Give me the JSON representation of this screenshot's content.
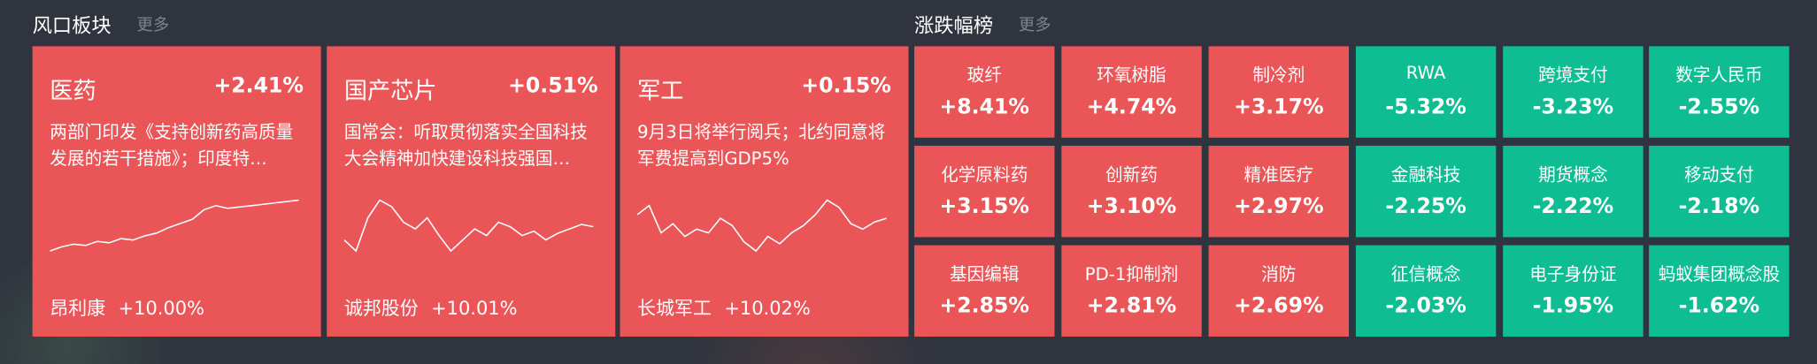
{
  "boards": {
    "title": "风口板块",
    "more": "更多",
    "cards": [
      {
        "name": "医药",
        "change": "+2.41%",
        "news": "两部门印发《支持创新药高质量发展的若干措施》；印度特…",
        "sparkline": [
          5,
          8,
          10,
          9,
          12,
          11,
          14,
          13,
          16,
          18,
          22,
          25,
          28,
          35,
          38,
          36,
          37,
          38,
          39,
          40,
          41,
          42
        ],
        "stock": "昂利康",
        "stock_change": "+10.00%"
      },
      {
        "name": "国产芯片",
        "change": "+0.51%",
        "news": "国常会：听取贯彻落实全国科技大会精神加快建设科技强国…",
        "sparkline": [
          20,
          15,
          30,
          38,
          35,
          28,
          25,
          30,
          22,
          15,
          20,
          25,
          22,
          28,
          26,
          22,
          24,
          20,
          23,
          25,
          27,
          26
        ],
        "stock": "诚邦股份",
        "stock_change": "+10.01%"
      },
      {
        "name": "军工",
        "change": "+0.15%",
        "news": "9月3日将举行阅兵；北约同意将军费提高到GDP5%",
        "sparkline": [
          30,
          35,
          20,
          25,
          18,
          22,
          20,
          28,
          24,
          15,
          10,
          18,
          14,
          20,
          24,
          30,
          38,
          34,
          25,
          22,
          26,
          28
        ],
        "stock": "长城军工",
        "stock_change": "+10.02%"
      }
    ]
  },
  "ranking": {
    "title": "涨跌幅榜",
    "more": "更多",
    "items": [
      {
        "name": "玻纤",
        "change": "+8.41%"
      },
      {
        "name": "环氧树脂",
        "change": "+4.74%"
      },
      {
        "name": "制冷剂",
        "change": "+3.17%"
      },
      {
        "name": "RWA",
        "change": "-5.32%"
      },
      {
        "name": "跨境支付",
        "change": "-3.23%"
      },
      {
        "name": "数字人民币",
        "change": "-2.55%"
      },
      {
        "name": "化学原料药",
        "change": "+3.15%"
      },
      {
        "name": "创新药",
        "change": "+3.10%"
      },
      {
        "name": "精准医疗",
        "change": "+2.97%"
      },
      {
        "name": "金融科技",
        "change": "-2.25%"
      },
      {
        "name": "期货概念",
        "change": "-2.22%"
      },
      {
        "name": "移动支付",
        "change": "-2.18%"
      },
      {
        "name": "基因编辑",
        "change": "+2.85%"
      },
      {
        "name": "PD-1抑制剂",
        "change": "+2.81%"
      },
      {
        "name": "消防",
        "change": "+2.69%"
      },
      {
        "name": "征信概念",
        "change": "-2.03%"
      },
      {
        "name": "电子身份证",
        "change": "-1.95%"
      },
      {
        "name": "蚂蚁集团概念股",
        "change": "-1.62%"
      }
    ]
  }
}
